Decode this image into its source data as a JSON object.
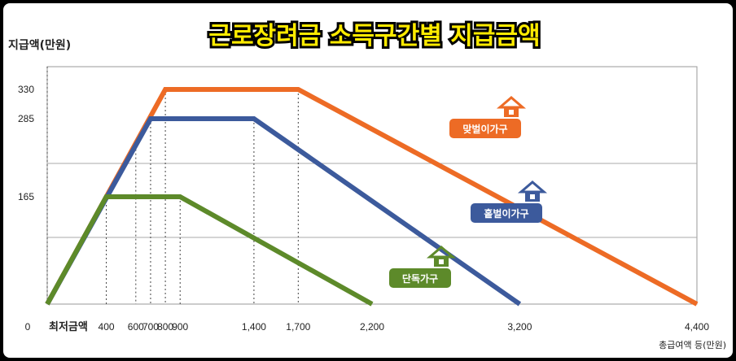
{
  "chart_data": {
    "type": "line",
    "title": "근로장려금 소득구간별 지급금액",
    "ylabel": "지급액(만원)",
    "xlabel": "총급여액 등(만원)",
    "x_origin_label": "0",
    "x_min_label": "최저금액",
    "xlim": [
      0,
      4400
    ],
    "ylim": [
      0,
      330
    ],
    "x_ticks": [
      400,
      600,
      700,
      800,
      900,
      1400,
      1700,
      2200,
      3200,
      4400
    ],
    "x_tick_labels": [
      "400",
      "600",
      "700",
      "800",
      "900",
      "1,400",
      "1,700",
      "2,200",
      "3,200",
      "4,400"
    ],
    "y_ticks": [
      165,
      285,
      330
    ],
    "y_tick_labels": [
      "165",
      "285",
      "330"
    ],
    "grid": true,
    "series": [
      {
        "name": "맞벌이가구",
        "color": "#ed6b25",
        "icon": "house-icon",
        "points": [
          [
            0,
            0
          ],
          [
            800,
            330
          ],
          [
            1700,
            330
          ],
          [
            4400,
            0
          ]
        ]
      },
      {
        "name": "홑벌이가구",
        "color": "#3c5a9c",
        "icon": "house-icon",
        "points": [
          [
            0,
            0
          ],
          [
            700,
            285
          ],
          [
            1400,
            285
          ],
          [
            3200,
            0
          ]
        ]
      },
      {
        "name": "단독가구",
        "color": "#5d8a2a",
        "icon": "house-icon",
        "points": [
          [
            0,
            0
          ],
          [
            400,
            165
          ],
          [
            900,
            165
          ],
          [
            2200,
            0
          ]
        ]
      }
    ]
  }
}
